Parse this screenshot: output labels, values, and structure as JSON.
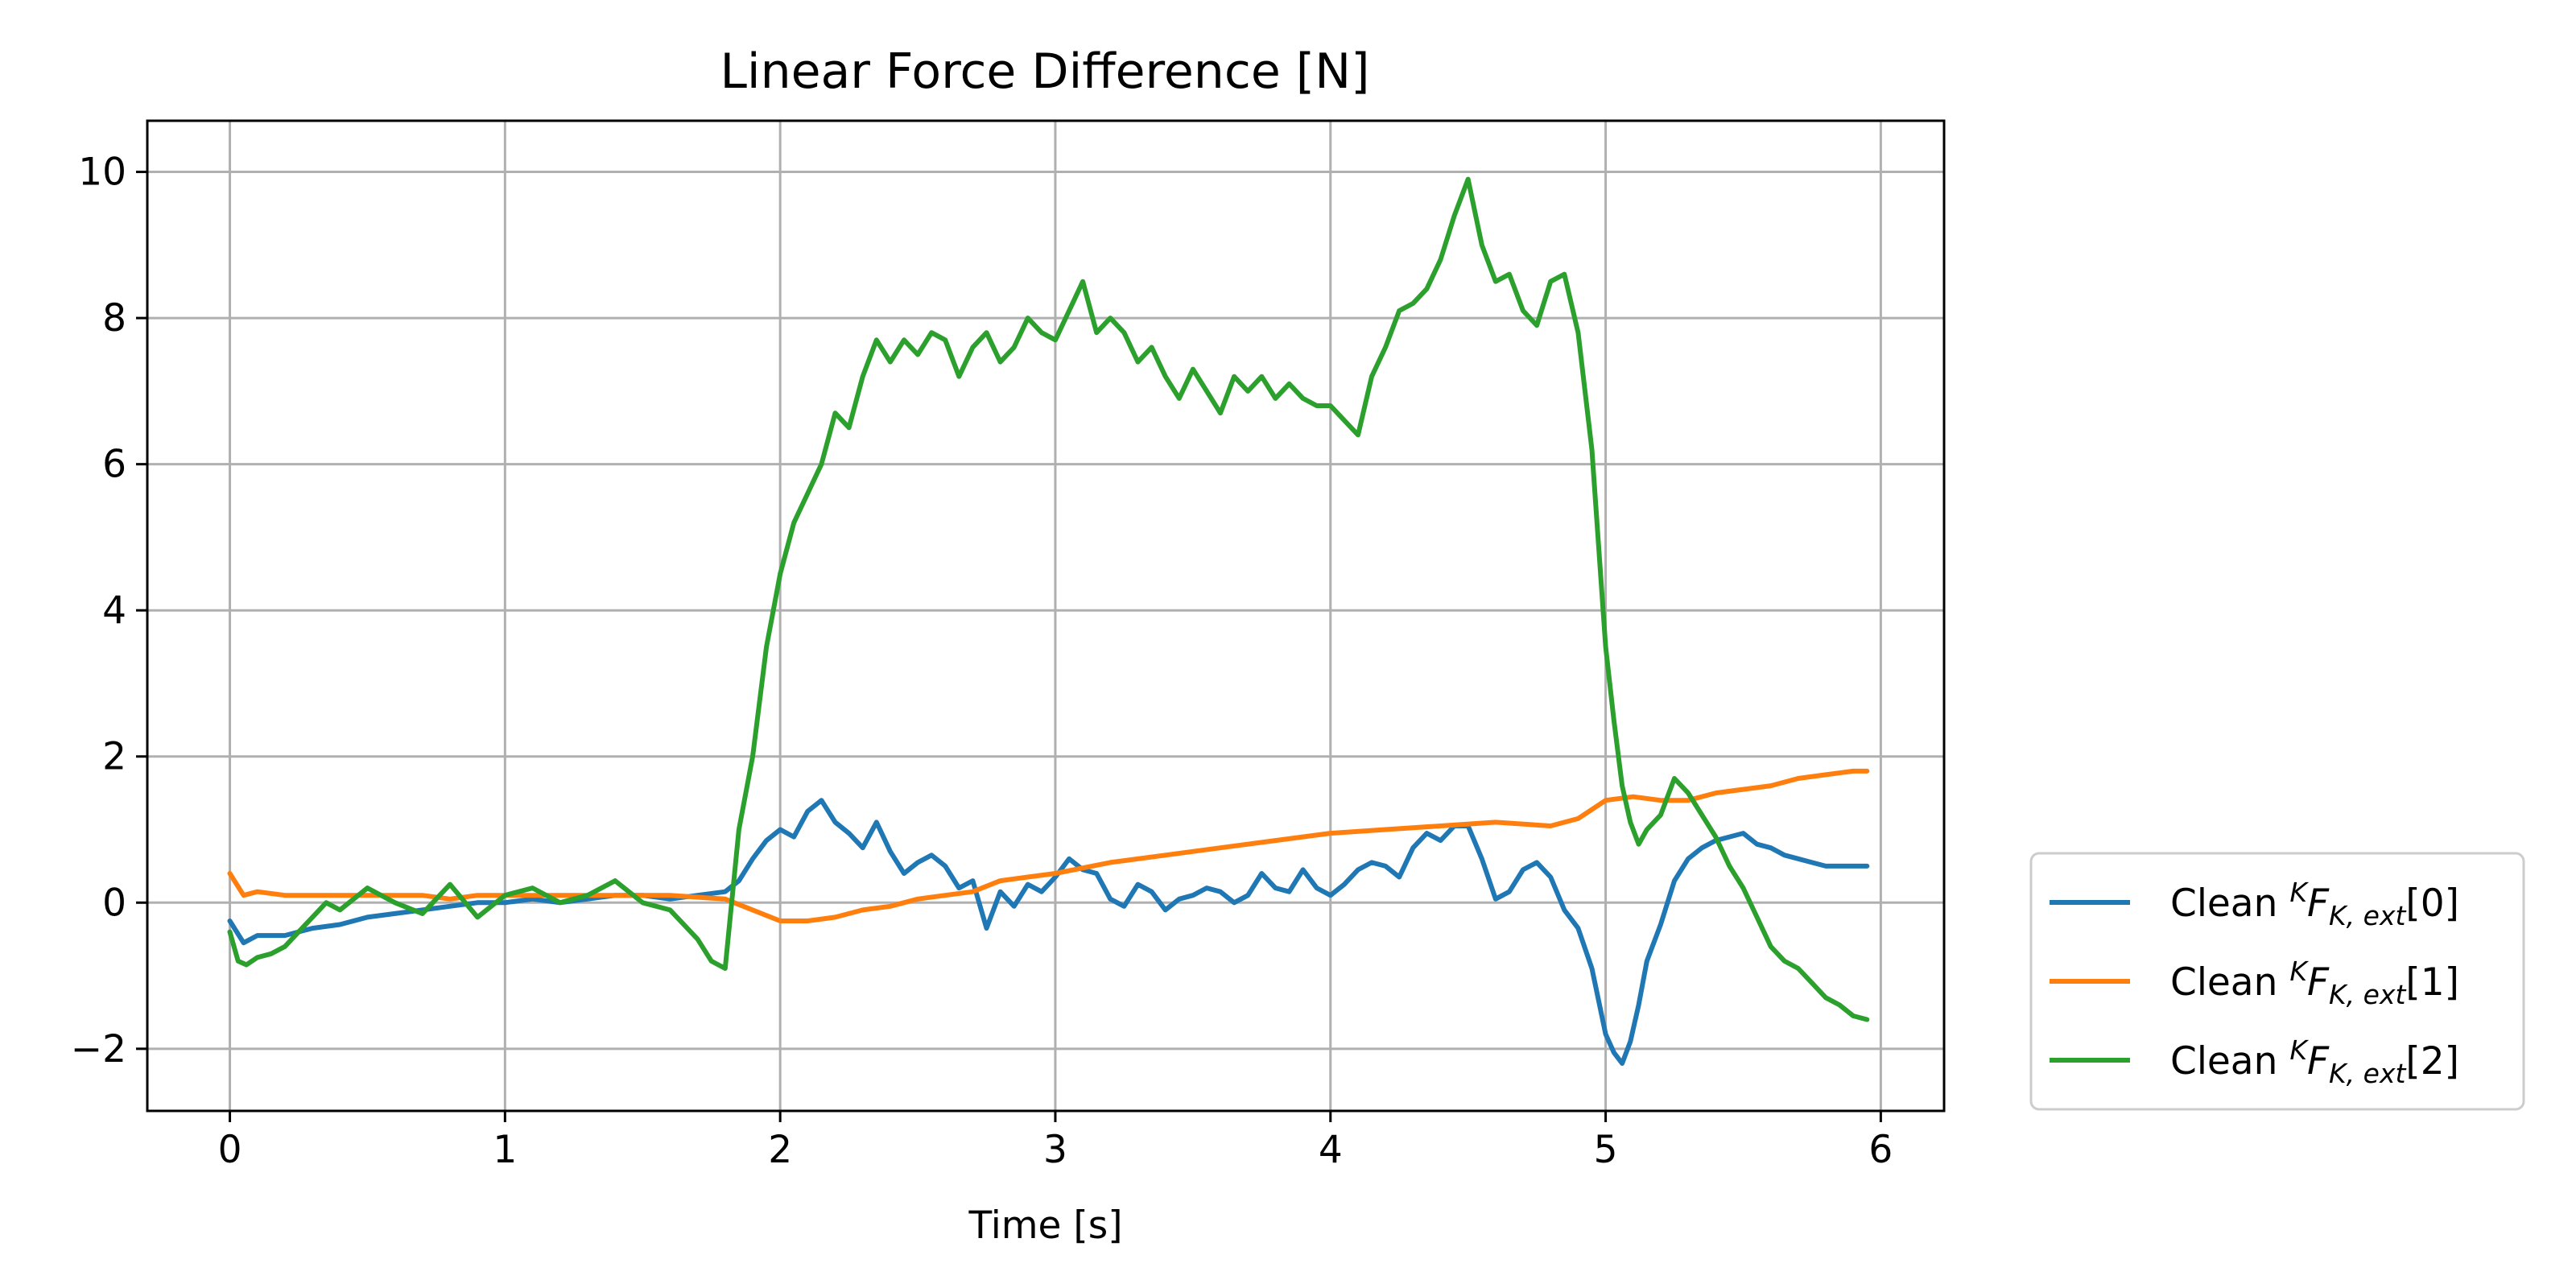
{
  "chart_data": {
    "type": "line",
    "title": "Linear Force Difference [N]",
    "xlabel": "Time [s]",
    "ylabel": "",
    "xlim": [
      -0.3,
      6.23
    ],
    "ylim": [
      -2.85,
      10.7
    ],
    "xticks": [
      0,
      1,
      2,
      3,
      4,
      5,
      6
    ],
    "xtick_labels": [
      "0",
      "1",
      "2",
      "3",
      "4",
      "5",
      "6"
    ],
    "yticks": [
      -2,
      0,
      2,
      4,
      6,
      8,
      10
    ],
    "ytick_labels": [
      "−2",
      "0",
      "2",
      "4",
      "6",
      "8",
      "10"
    ],
    "grid": true,
    "legend_position": "outside-right-bottom",
    "series": [
      {
        "name": "Clean KFK,ext[0]",
        "legend_parts": {
          "prefix": "Clean ",
          "sup": "K",
          "main": "F",
          "sub": "K, ext",
          "index": "[0]"
        },
        "color": "#1f77b4",
        "x": [
          0.0,
          0.05,
          0.1,
          0.2,
          0.3,
          0.4,
          0.5,
          0.6,
          0.7,
          0.8,
          0.9,
          1.0,
          1.1,
          1.2,
          1.3,
          1.4,
          1.5,
          1.6,
          1.7,
          1.8,
          1.85,
          1.9,
          1.95,
          2.0,
          2.05,
          2.1,
          2.15,
          2.2,
          2.25,
          2.3,
          2.35,
          2.4,
          2.45,
          2.5,
          2.55,
          2.6,
          2.65,
          2.7,
          2.75,
          2.8,
          2.85,
          2.9,
          2.95,
          3.0,
          3.05,
          3.1,
          3.15,
          3.2,
          3.25,
          3.3,
          3.35,
          3.4,
          3.45,
          3.5,
          3.55,
          3.6,
          3.65,
          3.7,
          3.75,
          3.8,
          3.85,
          3.9,
          3.95,
          4.0,
          4.05,
          4.1,
          4.15,
          4.2,
          4.25,
          4.3,
          4.35,
          4.4,
          4.45,
          4.5,
          4.55,
          4.6,
          4.65,
          4.7,
          4.75,
          4.8,
          4.85,
          4.9,
          4.95,
          5.0,
          5.03,
          5.06,
          5.09,
          5.12,
          5.15,
          5.2,
          5.25,
          5.3,
          5.35,
          5.4,
          5.45,
          5.5,
          5.55,
          5.6,
          5.65,
          5.7,
          5.75,
          5.8,
          5.85,
          5.9,
          5.95
        ],
        "y": [
          -0.25,
          -0.55,
          -0.45,
          -0.45,
          -0.35,
          -0.3,
          -0.2,
          -0.15,
          -0.1,
          -0.05,
          0.0,
          0.0,
          0.05,
          0.0,
          0.05,
          0.1,
          0.1,
          0.05,
          0.1,
          0.15,
          0.3,
          0.6,
          0.85,
          1.0,
          0.9,
          1.25,
          1.4,
          1.1,
          0.95,
          0.75,
          1.1,
          0.7,
          0.4,
          0.55,
          0.65,
          0.5,
          0.2,
          0.3,
          -0.35,
          0.15,
          -0.05,
          0.25,
          0.15,
          0.35,
          0.6,
          0.45,
          0.4,
          0.05,
          -0.05,
          0.25,
          0.15,
          -0.1,
          0.05,
          0.1,
          0.2,
          0.15,
          0.0,
          0.1,
          0.4,
          0.2,
          0.15,
          0.45,
          0.2,
          0.1,
          0.25,
          0.45,
          0.55,
          0.5,
          0.35,
          0.75,
          0.95,
          0.85,
          1.05,
          1.05,
          0.6,
          0.05,
          0.15,
          0.45,
          0.55,
          0.35,
          -0.1,
          -0.35,
          -0.9,
          -1.8,
          -2.05,
          -2.2,
          -1.9,
          -1.4,
          -0.8,
          -0.3,
          0.3,
          0.6,
          0.75,
          0.85,
          0.9,
          0.95,
          0.8,
          0.75,
          0.65,
          0.6,
          0.55,
          0.5,
          0.5,
          0.5,
          0.5
        ]
      },
      {
        "name": "Clean KFK,ext[1]",
        "legend_parts": {
          "prefix": "Clean ",
          "sup": "K",
          "main": "F",
          "sub": "K, ext",
          "index": "[1]"
        },
        "color": "#ff7f0e",
        "x": [
          0.0,
          0.05,
          0.1,
          0.2,
          0.3,
          0.4,
          0.5,
          0.6,
          0.7,
          0.8,
          0.9,
          1.0,
          1.2,
          1.4,
          1.6,
          1.8,
          1.9,
          2.0,
          2.1,
          2.2,
          2.3,
          2.4,
          2.5,
          2.6,
          2.7,
          2.8,
          2.9,
          3.0,
          3.2,
          3.4,
          3.6,
          3.8,
          4.0,
          4.2,
          4.4,
          4.6,
          4.8,
          4.9,
          5.0,
          5.1,
          5.2,
          5.3,
          5.4,
          5.5,
          5.6,
          5.7,
          5.8,
          5.9,
          5.95
        ],
        "y": [
          0.4,
          0.1,
          0.15,
          0.1,
          0.1,
          0.1,
          0.1,
          0.1,
          0.1,
          0.05,
          0.1,
          0.1,
          0.1,
          0.1,
          0.1,
          0.05,
          -0.1,
          -0.25,
          -0.25,
          -0.2,
          -0.1,
          -0.05,
          0.05,
          0.1,
          0.15,
          0.3,
          0.35,
          0.4,
          0.55,
          0.65,
          0.75,
          0.85,
          0.95,
          1.0,
          1.05,
          1.1,
          1.05,
          1.15,
          1.4,
          1.45,
          1.4,
          1.4,
          1.5,
          1.55,
          1.6,
          1.7,
          1.75,
          1.8,
          1.8
        ]
      },
      {
        "name": "Clean KFK,ext[2]",
        "legend_parts": {
          "prefix": "Clean ",
          "sup": "K",
          "main": "F",
          "sub": "K, ext",
          "index": "[2]"
        },
        "color": "#2ca02c",
        "x": [
          0.0,
          0.03,
          0.06,
          0.1,
          0.15,
          0.2,
          0.25,
          0.3,
          0.35,
          0.4,
          0.5,
          0.6,
          0.7,
          0.8,
          0.9,
          1.0,
          1.1,
          1.2,
          1.3,
          1.4,
          1.5,
          1.6,
          1.7,
          1.75,
          1.8,
          1.85,
          1.9,
          1.95,
          2.0,
          2.05,
          2.1,
          2.15,
          2.2,
          2.25,
          2.3,
          2.35,
          2.4,
          2.45,
          2.5,
          2.55,
          2.6,
          2.65,
          2.7,
          2.75,
          2.8,
          2.85,
          2.9,
          2.95,
          3.0,
          3.05,
          3.1,
          3.15,
          3.2,
          3.25,
          3.3,
          3.35,
          3.4,
          3.45,
          3.5,
          3.55,
          3.6,
          3.65,
          3.7,
          3.75,
          3.8,
          3.85,
          3.9,
          3.95,
          4.0,
          4.05,
          4.1,
          4.15,
          4.2,
          4.25,
          4.3,
          4.35,
          4.4,
          4.45,
          4.5,
          4.55,
          4.6,
          4.65,
          4.7,
          4.75,
          4.8,
          4.85,
          4.9,
          4.95,
          5.0,
          5.03,
          5.06,
          5.09,
          5.12,
          5.15,
          5.2,
          5.25,
          5.3,
          5.35,
          5.4,
          5.45,
          5.5,
          5.55,
          5.6,
          5.65,
          5.7,
          5.75,
          5.8,
          5.85,
          5.9,
          5.95
        ],
        "y": [
          -0.4,
          -0.8,
          -0.85,
          -0.75,
          -0.7,
          -0.6,
          -0.4,
          -0.2,
          0.0,
          -0.1,
          0.2,
          0.0,
          -0.15,
          0.25,
          -0.2,
          0.1,
          0.2,
          0.0,
          0.1,
          0.3,
          0.0,
          -0.1,
          -0.5,
          -0.8,
          -0.9,
          1.0,
          2.0,
          3.5,
          4.5,
          5.2,
          5.6,
          6.0,
          6.7,
          6.5,
          7.2,
          7.7,
          7.4,
          7.7,
          7.5,
          7.8,
          7.7,
          7.2,
          7.6,
          7.8,
          7.4,
          7.6,
          8.0,
          7.8,
          7.7,
          8.1,
          8.5,
          7.8,
          8.0,
          7.8,
          7.4,
          7.6,
          7.2,
          6.9,
          7.3,
          7.0,
          6.7,
          7.2,
          7.0,
          7.2,
          6.9,
          7.1,
          6.9,
          6.8,
          6.8,
          6.6,
          6.4,
          7.2,
          7.6,
          8.1,
          8.2,
          8.4,
          8.8,
          9.4,
          9.9,
          9.0,
          8.5,
          8.6,
          8.1,
          7.9,
          8.5,
          8.6,
          7.8,
          6.2,
          3.5,
          2.5,
          1.6,
          1.1,
          0.8,
          1.0,
          1.2,
          1.7,
          1.5,
          1.2,
          0.9,
          0.5,
          0.2,
          -0.2,
          -0.6,
          -0.8,
          -0.9,
          -1.1,
          -1.3,
          -1.4,
          -1.55,
          -1.6
        ]
      }
    ]
  }
}
